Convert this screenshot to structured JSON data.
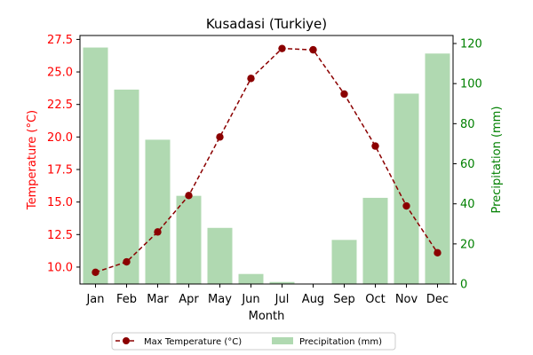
{
  "chart_data": {
    "type": "bar+line",
    "title": "Kusadasi (Turkiye)",
    "xlabel": "Month",
    "categories": [
      "Jan",
      "Feb",
      "Mar",
      "Apr",
      "May",
      "Jun",
      "Jul",
      "Aug",
      "Sep",
      "Oct",
      "Nov",
      "Dec"
    ],
    "y_left": {
      "label": "Temperature (°C)",
      "color": "#ff0000",
      "lim": [
        8.7,
        27.8
      ],
      "ticks": [
        "10.0",
        "12.5",
        "15.0",
        "17.5",
        "20.0",
        "22.5",
        "25.0",
        "27.5"
      ]
    },
    "y_right": {
      "label": "Precipitation (mm)",
      "color": "#008000",
      "lim": [
        0,
        124
      ],
      "ticks": [
        "0",
        "20",
        "40",
        "60",
        "80",
        "100",
        "120"
      ]
    },
    "series": [
      {
        "name": "Max Temperature (°C)",
        "kind": "line",
        "axis": "left",
        "color": "#8b0000",
        "style": "dashed line with circle markers",
        "values": [
          9.6,
          10.4,
          12.7,
          15.5,
          20.0,
          24.5,
          26.8,
          26.7,
          23.3,
          19.3,
          14.7,
          11.1
        ]
      },
      {
        "name": "Precipitation (mm)",
        "kind": "bar",
        "axis": "right",
        "color": "#b0d9b1",
        "values": [
          118,
          97,
          72,
          44,
          28,
          5,
          1,
          0,
          22,
          43,
          95,
          115
        ]
      }
    ],
    "legend": {
      "placement": "bottom-center, below the plot, two columns",
      "entries": [
        "Max Temperature (°C)",
        "Precipitation (mm)"
      ]
    },
    "grid": false
  }
}
